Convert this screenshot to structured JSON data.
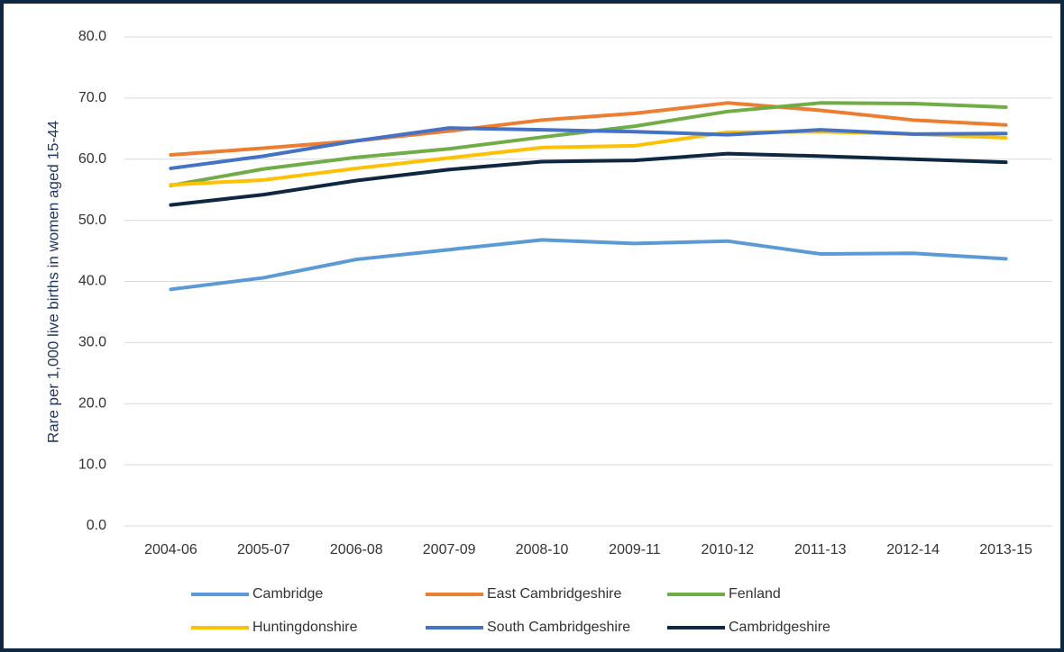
{
  "chart_data": {
    "type": "line",
    "y_label": "Rare per 1,000 live births in women aged 15-44",
    "categories": [
      "2004-06",
      "2005-07",
      "2006-08",
      "2007-09",
      "2008-10",
      "2009-11",
      "2010-12",
      "2011-13",
      "2012-14",
      "2013-15"
    ],
    "series": [
      {
        "name": "Cambridge",
        "color": "#5b9bd5",
        "values": [
          38.7,
          40.6,
          43.6,
          45.2,
          46.8,
          46.2,
          46.6,
          44.5,
          44.6,
          43.7
        ]
      },
      {
        "name": "East Cambridgeshire",
        "color": "#ed7d31",
        "values": [
          60.7,
          61.8,
          63.0,
          64.6,
          66.4,
          67.5,
          69.2,
          68.0,
          66.4,
          65.6
        ]
      },
      {
        "name": "Fenland",
        "color": "#70ad47",
        "values": [
          55.7,
          58.4,
          60.3,
          61.7,
          63.6,
          65.4,
          67.8,
          69.2,
          69.1,
          68.5
        ]
      },
      {
        "name": "Huntingdonshire",
        "color": "#ffc000",
        "values": [
          55.8,
          56.6,
          58.5,
          60.2,
          61.9,
          62.2,
          64.4,
          64.5,
          64.1,
          63.5
        ]
      },
      {
        "name": "South Cambridgeshire",
        "color": "#4472c4",
        "values": [
          58.5,
          60.5,
          63.0,
          65.1,
          64.8,
          64.5,
          64.0,
          64.8,
          64.1,
          64.2
        ]
      },
      {
        "name": "Cambridgeshire",
        "color": "#0e2841",
        "values": [
          52.5,
          54.2,
          56.5,
          58.3,
          59.6,
          59.8,
          60.9,
          60.5,
          60.0,
          59.5
        ]
      }
    ],
    "ylim": [
      0,
      80
    ],
    "yticks": [
      {
        "value": 0,
        "label": "0.0"
      },
      {
        "value": 10,
        "label": "10.0"
      },
      {
        "value": 20,
        "label": "20.0"
      },
      {
        "value": 30,
        "label": "30.0"
      },
      {
        "value": 40,
        "label": "40.0"
      },
      {
        "value": 50,
        "label": "50.0"
      },
      {
        "value": 60,
        "label": "60.0"
      },
      {
        "value": 70,
        "label": "70.0"
      },
      {
        "value": 80,
        "label": "80.0"
      }
    ],
    "grid": true,
    "legend": "bottom"
  }
}
